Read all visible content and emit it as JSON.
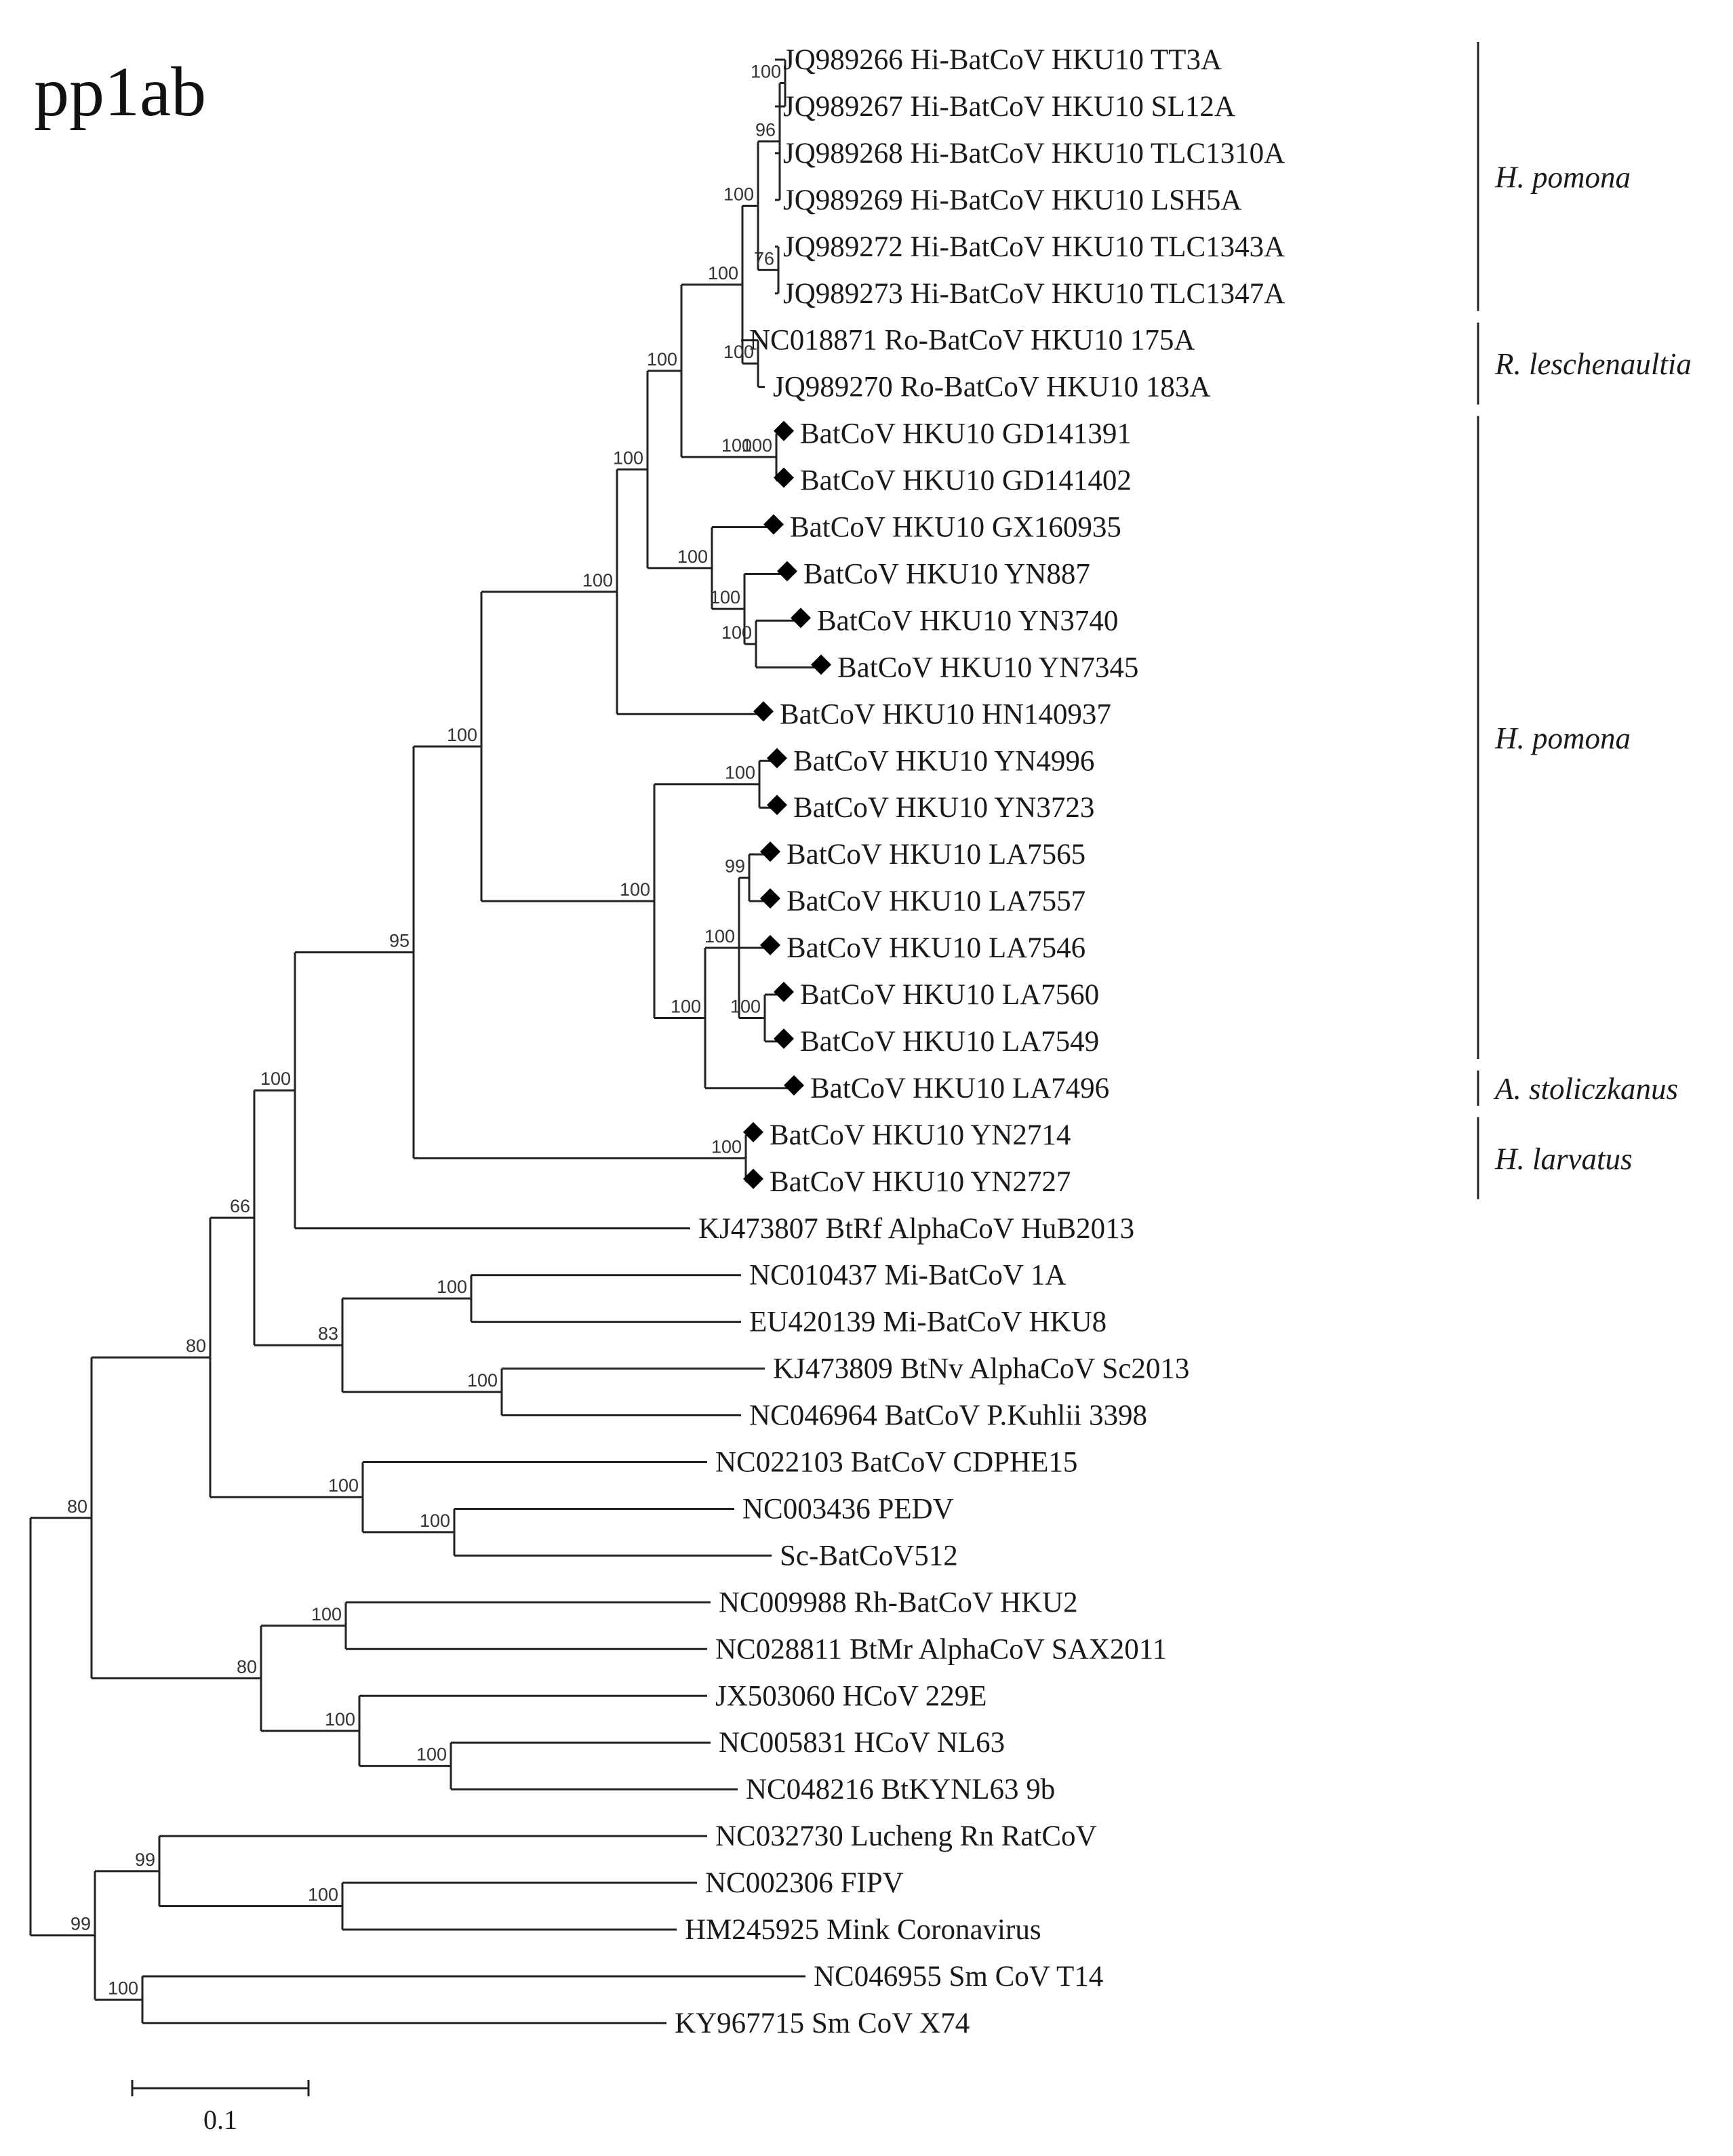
{
  "title": "pp1ab",
  "leaves": [
    {
      "label": "JQ989266 Hi-BatCoV HKU10  TT3A",
      "marker": false
    },
    {
      "label": "JQ989267 Hi-BatCoV HKU10  SL12A",
      "marker": false
    },
    {
      "label": "JQ989268 Hi-BatCoV HKU10  TLC1310A",
      "marker": false
    },
    {
      "label": "JQ989269 Hi-BatCoV HKU10  LSH5A",
      "marker": false
    },
    {
      "label": "JQ989272 Hi-BatCoV HKU10  TLC1343A",
      "marker": false
    },
    {
      "label": "JQ989273 Hi-BatCoV HKU10  TLC1347A",
      "marker": false
    },
    {
      "label": "NC018871  Ro-BatCoV HKU10  175A",
      "marker": false
    },
    {
      "label": "JQ989270 Ro-BatCoV HKU10  183A",
      "marker": false
    },
    {
      "label": "BatCoV HKU10  GD141391",
      "marker": true
    },
    {
      "label": "BatCoV HKU10  GD141402",
      "marker": true
    },
    {
      "label": "BatCoV HKU10  GX160935",
      "marker": true
    },
    {
      "label": "BatCoV HKU10  YN887",
      "marker": true
    },
    {
      "label": "BatCoV HKU10  YN3740",
      "marker": true
    },
    {
      "label": "BatCoV HKU10  YN7345",
      "marker": true
    },
    {
      "label": "BatCoV HKU10  HN140937",
      "marker": true
    },
    {
      "label": "BatCoV HKU10  YN4996",
      "marker": true
    },
    {
      "label": "BatCoV HKU10  YN3723",
      "marker": true
    },
    {
      "label": "BatCoV HKU10  LA7565",
      "marker": true
    },
    {
      "label": "BatCoV HKU10  LA7557",
      "marker": true
    },
    {
      "label": "BatCoV HKU10  LA7546",
      "marker": true
    },
    {
      "label": "BatCoV HKU10  LA7560",
      "marker": true
    },
    {
      "label": "BatCoV HKU10  LA7549",
      "marker": true
    },
    {
      "label": "BatCoV HKU10  LA7496",
      "marker": true
    },
    {
      "label": "BatCoV HKU10  YN2714",
      "marker": true
    },
    {
      "label": "BatCoV HKU10  YN2727",
      "marker": true
    },
    {
      "label": "KJ473807  BtRf  AlphaCoV HuB2013",
      "marker": false
    },
    {
      "label": "NC010437  Mi-BatCoV 1A",
      "marker": false
    },
    {
      "label": "EU420139  Mi-BatCoV HKU8",
      "marker": false
    },
    {
      "label": "KJ473809  BtNv  AlphaCoV Sc2013",
      "marker": false
    },
    {
      "label": "NC046964 BatCoV P.Kuhlii  3398",
      "marker": false
    },
    {
      "label": "NC022103  BatCoV CDPHE15",
      "marker": false
    },
    {
      "label": "NC003436  PEDV",
      "marker": false
    },
    {
      "label": "Sc-BatCoV512",
      "marker": false
    },
    {
      "label": "NC009988  Rh-BatCoV HKU2",
      "marker": false
    },
    {
      "label": "NC028811  BtMr  AlphaCoV SAX2011",
      "marker": false
    },
    {
      "label": "JX503060 HCoV 229E",
      "marker": false
    },
    {
      "label": "NC005831  HCoV NL63",
      "marker": false
    },
    {
      "label": "NC048216  BtKYNL63  9b",
      "marker": false
    },
    {
      "label": "NC032730  Lucheng Rn  RatCoV",
      "marker": false
    },
    {
      "label": "NC002306  FIPV",
      "marker": false
    },
    {
      "label": "HM245925  Mink  Coronavirus",
      "marker": false
    },
    {
      "label": "NC046955  Sm CoV T14",
      "marker": false
    },
    {
      "label": "KY967715  Sm CoV X74",
      "marker": false
    }
  ],
  "bootstrap": [
    "100",
    "96",
    "100",
    "100",
    "100",
    "76",
    "100",
    "100",
    "100",
    "100",
    "100",
    "100",
    "100",
    "99",
    "100",
    "100",
    "100",
    "100",
    "100",
    "100",
    "95",
    "100",
    "100",
    "83",
    "100",
    "66",
    "100",
    "100",
    "80",
    "80",
    "80",
    "100",
    "100",
    "99",
    "100",
    "100"
  ],
  "groups": [
    "H. pomona",
    "R. leschenaultia",
    "H. pomona",
    "A. stoliczkanus",
    "H. larvatus"
  ],
  "scale_bar": {
    "label": "0.1"
  }
}
